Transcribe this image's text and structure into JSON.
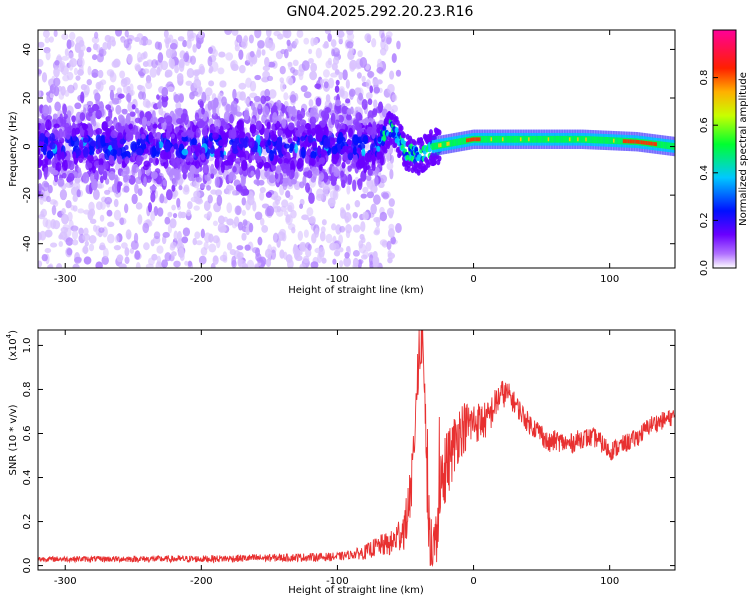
{
  "title": "GN04.2025.292.20.23.R16",
  "chart_data": [
    {
      "type": "heatmap",
      "title": "GN04.2025.292.20.23.R16",
      "xlabel": "Height of straight line (km)",
      "ylabel": "Frequency (Hz)",
      "xlim": [
        -320,
        148
      ],
      "ylim": [
        -50,
        48
      ],
      "xticks": [
        -300,
        -200,
        -100,
        0,
        100
      ],
      "yticks": [
        -40,
        -20,
        0,
        20,
        40
      ],
      "xtick_labels": [
        "-300",
        "-200",
        "-100",
        "0",
        "100"
      ],
      "ytick_labels": [
        "-40",
        "-20",
        "0",
        "20",
        "40"
      ],
      "colorbar": {
        "label": "Normalized spectral amplitude",
        "range": [
          0,
          1
        ],
        "ticks": [
          0.0,
          0.2,
          0.4,
          0.6,
          0.8
        ],
        "tick_labels": [
          "0.0",
          "0.2",
          "0.4",
          "0.6",
          "0.8"
        ],
        "colors": [
          "#ffffff",
          "#7a00ff",
          "#0000ff",
          "#00c8ff",
          "#00ff00",
          "#ffff00",
          "#ff8000",
          "#ff0000",
          "#ff0090"
        ]
      },
      "signal_center": [
        {
          "x": -320,
          "f": 0
        },
        {
          "x": -70,
          "f": 2
        },
        {
          "x": -60,
          "f": 8
        },
        {
          "x": -50,
          "f": -2
        },
        {
          "x": -40,
          "f": -4
        },
        {
          "x": -30,
          "f": 0
        },
        {
          "x": -10,
          "f": 2
        },
        {
          "x": 0,
          "f": 3
        },
        {
          "x": 40,
          "f": 3
        },
        {
          "x": 80,
          "f": 3
        },
        {
          "x": 120,
          "f": 2
        },
        {
          "x": 148,
          "f": 0
        }
      ],
      "noise_region_km": [
        -320,
        -65
      ],
      "peak_region_km": [
        110,
        135
      ]
    },
    {
      "type": "line",
      "xlabel": "Height of straight line (km)",
      "ylabel": "SNR (10 * v/v)",
      "y_multiplier": "(x10",
      "y_multiplier_exp": "4",
      "y_multiplier_close": ")",
      "xlim": [
        -320,
        148
      ],
      "ylim": [
        -0.02,
        1.07
      ],
      "xticks": [
        -300,
        -200,
        -100,
        0,
        100
      ],
      "yticks": [
        0.0,
        0.2,
        0.4,
        0.6,
        0.8,
        1.0
      ],
      "xtick_labels": [
        "-300",
        "-200",
        "-100",
        "0",
        "100"
      ],
      "ytick_labels": [
        "0.0",
        "0.2",
        "0.4",
        "0.6",
        "0.8",
        "1.0"
      ],
      "color": "#e83030",
      "series": [
        {
          "name": "SNR",
          "x": [
            -320,
            -200,
            -100,
            -80,
            -70,
            -60,
            -50,
            -45,
            -42,
            -38,
            -36,
            -34,
            -32,
            -30,
            -28,
            -25,
            -20,
            -10,
            0,
            10,
            15,
            20,
            25,
            30,
            40,
            50,
            55,
            60,
            70,
            80,
            90,
            100,
            110,
            120,
            130,
            140,
            148
          ],
          "y": [
            0.03,
            0.03,
            0.04,
            0.06,
            0.09,
            0.1,
            0.18,
            0.4,
            0.8,
            1.05,
            0.85,
            0.3,
            0.1,
            0.02,
            0.05,
            0.35,
            0.45,
            0.62,
            0.65,
            0.66,
            0.72,
            0.78,
            0.78,
            0.74,
            0.65,
            0.6,
            0.55,
            0.57,
            0.55,
            0.58,
            0.58,
            0.52,
            0.55,
            0.58,
            0.64,
            0.66,
            0.68
          ]
        }
      ],
      "noise_amplitude": [
        {
          "x": -320,
          "a": 0.012
        },
        {
          "x": -90,
          "a": 0.02
        },
        {
          "x": -60,
          "a": 0.06
        },
        {
          "x": -40,
          "a": 0.15
        },
        {
          "x": -20,
          "a": 0.16
        },
        {
          "x": 0,
          "a": 0.1
        },
        {
          "x": 30,
          "a": 0.05
        },
        {
          "x": 148,
          "a": 0.04
        }
      ]
    }
  ]
}
